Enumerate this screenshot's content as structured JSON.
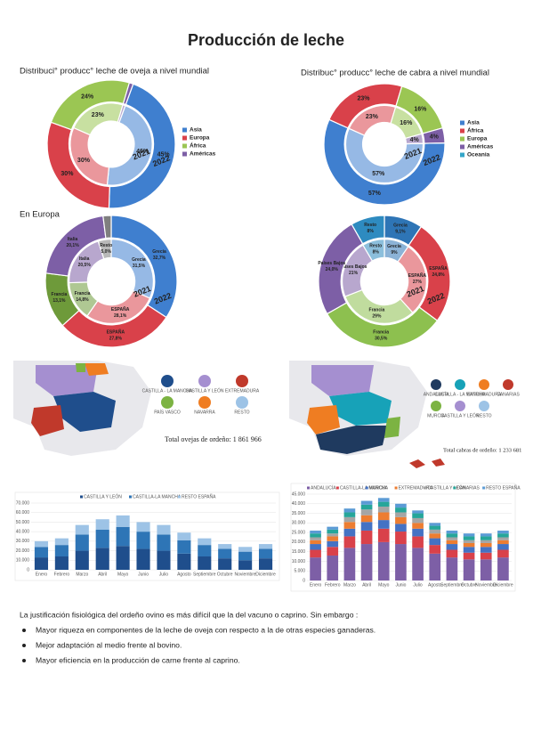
{
  "title": "Producción de leche",
  "chart_data": [
    {
      "type": "donut",
      "title": "Distribuci° producc° leche de oveja a nivel mundial",
      "categories": [
        "Asia",
        "Europa",
        "África",
        "Américas"
      ],
      "colors": [
        "#3f7fcf",
        "#d9414a",
        "#9bc653",
        "#7d5fa6"
      ],
      "series": [
        {
          "name": "2021",
          "values": [
            46,
            30,
            23,
            1
          ],
          "value_labels": [
            "46%",
            "30%",
            "23%",
            "1%"
          ]
        },
        {
          "name": "2022",
          "values": [
            45,
            30,
            24,
            1
          ],
          "value_labels": [
            "45%",
            "30%",
            "24%",
            "1%"
          ]
        }
      ]
    },
    {
      "type": "donut",
      "title": "Distribuc° producc° leche de cabra a nivel mundial",
      "categories": [
        "Asia",
        "África",
        "Europa",
        "Américas",
        "Oceania"
      ],
      "colors": [
        "#3f7fcf",
        "#d9414a",
        "#9bc653",
        "#7d5fa6",
        "#35a6c8"
      ],
      "series": [
        {
          "name": "2021",
          "values": [
            57,
            23,
            16,
            4,
            0
          ],
          "value_labels": [
            "57%",
            "23%",
            "16%",
            "4%",
            "0%"
          ]
        },
        {
          "name": "2022",
          "values": [
            57,
            23,
            16,
            4,
            0
          ],
          "value_labels": [
            "57%",
            "23%",
            "16%",
            "4%",
            "0%"
          ]
        }
      ]
    },
    {
      "type": "donut",
      "title": "En Europa",
      "categories": [
        "Grecia",
        "ESPAÑA",
        "Francia",
        "Italia",
        "Resto"
      ],
      "colors": [
        "#3f7fcf",
        "#d9414a",
        "#6e9a3a",
        "#7d5fa6",
        "#7f7f7f"
      ],
      "series": [
        {
          "name": "2021",
          "values": [
            31.5,
            28.1,
            14.8,
            20.5,
            5.0
          ],
          "value_labels": [
            "31,5%",
            "28,1%",
            "14,8%",
            "20,5%",
            "5,0%"
          ]
        },
        {
          "name": "2022",
          "values": [
            32.7,
            27.8,
            13.1,
            20.1,
            1.9
          ],
          "value_labels": [
            "32,7%",
            "27,8%",
            "13,1%",
            "20,1%",
            "1,9%"
          ]
        }
      ]
    },
    {
      "type": "donut",
      "categories": [
        "Grecia",
        "ESPAÑA",
        "Francia",
        "Países Bajos",
        "Resto"
      ],
      "colors": [
        "#2e75b6",
        "#d9414a",
        "#8dc04f",
        "#7d5fa6",
        "#2e8bc0"
      ],
      "series": [
        {
          "name": "2021",
          "values": [
            9,
            27,
            29,
            21,
            8
          ],
          "value_labels": [
            "9%",
            "27%",
            "29%",
            "21%",
            "8%"
          ]
        },
        {
          "name": "2022",
          "values": [
            9.1,
            24.8,
            30.5,
            24.0,
            8
          ],
          "value_labels": [
            "9,1%",
            "24,8%",
            "30,5%",
            "24,0%",
            "8%"
          ]
        }
      ]
    },
    {
      "type": "stacked_bar",
      "categories": [
        "Enero",
        "Febrero",
        "Marzo",
        "Abril",
        "Mayo",
        "Junio",
        "Julio",
        "Agosto",
        "Septiembre",
        "Octubre",
        "Noviembre",
        "Diciembre"
      ],
      "series": [
        {
          "name": "CASTILLA Y LEÓN",
          "color": "#1f4e8c",
          "values": [
            13000,
            14000,
            20000,
            23000,
            25000,
            22000,
            20000,
            17000,
            14000,
            12000,
            10000,
            12000
          ]
        },
        {
          "name": "CASTILLA-LA MANCHA",
          "color": "#2e75b6",
          "values": [
            11000,
            12000,
            17000,
            19000,
            20000,
            18000,
            17000,
            14000,
            12000,
            10000,
            9000,
            10000
          ]
        },
        {
          "name": "RESTO ESPAÑA",
          "color": "#9dc3e6",
          "values": [
            6000,
            7000,
            10000,
            11000,
            12000,
            10000,
            10000,
            8000,
            7000,
            5000,
            5000,
            5000
          ]
        }
      ],
      "ylim": [
        0,
        70000
      ],
      "yticks": [
        {
          "value": 0,
          "label": "0"
        },
        {
          "value": 10000,
          "label": "10.000"
        },
        {
          "value": 20000,
          "label": "20.000"
        },
        {
          "value": 30000,
          "label": "30.000"
        },
        {
          "value": 40000,
          "label": "40.000"
        },
        {
          "value": 50000,
          "label": "50.000"
        },
        {
          "value": 60000,
          "label": "60.000"
        },
        {
          "value": 70000,
          "label": "70.000"
        }
      ],
      "grid": true
    },
    {
      "type": "stacked_bar",
      "categories": [
        "Enero",
        "Febrero",
        "Marzo",
        "Abril",
        "Mayo",
        "Junio",
        "Julio",
        "Agosto",
        "Septiembre",
        "Octubre",
        "Noviembre",
        "Diciembre"
      ],
      "series": [
        {
          "name": "ANDALUCÍA",
          "color": "#7d5fa6",
          "values": [
            12000,
            13000,
            17000,
            19000,
            20000,
            19000,
            17000,
            14000,
            12000,
            11000,
            11000,
            12000
          ]
        },
        {
          "name": "CASTILLA-LA MANCHA",
          "color": "#d9414a",
          "values": [
            4000,
            4500,
            6000,
            7000,
            7000,
            6500,
            6000,
            4500,
            4000,
            3500,
            3500,
            4000
          ]
        },
        {
          "name": "MURCIA",
          "color": "#4472c4",
          "values": [
            3000,
            3000,
            4000,
            4500,
            4500,
            4000,
            4000,
            3500,
            3000,
            3000,
            3000,
            3000
          ]
        },
        {
          "name": "EXTREMADURA",
          "color": "#ed7d31",
          "values": [
            2000,
            2500,
            3500,
            3500,
            4000,
            3500,
            3000,
            2500,
            2000,
            2000,
            2000,
            2000
          ]
        },
        {
          "name": "CASTILLA Y LEÓN",
          "color": "#a5a5a5",
          "values": [
            1500,
            1500,
            2500,
            3000,
            3000,
            2500,
            2500,
            2000,
            1500,
            1500,
            1500,
            1500
          ]
        },
        {
          "name": "CANARIAS",
          "color": "#26a69a",
          "values": [
            2000,
            2000,
            2500,
            2500,
            2500,
            2500,
            2500,
            2000,
            2000,
            2000,
            2000,
            2000
          ]
        },
        {
          "name": "RESTO ESPAÑA",
          "color": "#5b9bd5",
          "values": [
            1500,
            1500,
            2000,
            2000,
            2000,
            2000,
            1500,
            1500,
            1500,
            1500,
            1500,
            1500
          ]
        }
      ],
      "ylim": [
        0,
        45000
      ],
      "yticks": [
        {
          "value": 0,
          "label": "0"
        },
        {
          "value": 5000,
          "label": "5.000"
        },
        {
          "value": 10000,
          "label": "10.000"
        },
        {
          "value": 15000,
          "label": "15.000"
        },
        {
          "value": 20000,
          "label": "20.000"
        },
        {
          "value": 25000,
          "label": "25.000"
        },
        {
          "value": 30000,
          "label": "30.000"
        },
        {
          "value": 35000,
          "label": "35.000"
        },
        {
          "value": 40000,
          "label": "40.000"
        },
        {
          "value": 45000,
          "label": "45.000"
        }
      ],
      "grid": true
    }
  ],
  "maps": [
    {
      "legend": [
        {
          "label": "CASTILLA - LA MANCHA",
          "color": "#1f4e8c"
        },
        {
          "label": "CASTILLA Y LEÓN",
          "color": "#a58fd0"
        },
        {
          "label": "EXTREMADURA",
          "color": "#c0392b"
        },
        {
          "label": "PAÍS VASCO",
          "color": "#7cb342"
        },
        {
          "label": "NAVARRA",
          "color": "#ef7d22"
        },
        {
          "label": "RESTO",
          "color": "#9dc3e6"
        }
      ],
      "total": "Total ovejas de ordeño: 1 861 966"
    },
    {
      "legend": [
        {
          "label": "ANDALUCÍA",
          "color": "#1f3a5f"
        },
        {
          "label": "CASTILLA - LA MANCHA",
          "color": "#17a2b8"
        },
        {
          "label": "EXTREMADURA",
          "color": "#ef7d22"
        },
        {
          "label": "CANARIAS",
          "color": "#c0392b"
        },
        {
          "label": "MURCIA",
          "color": "#7cb342"
        },
        {
          "label": "CASTILLA Y LEÓN",
          "color": "#a58fd0"
        },
        {
          "label": "RESTO",
          "color": "#9dc3e6"
        }
      ],
      "total": "Total cabras de ordeño: 1 233 681"
    }
  ],
  "text": {
    "intro": "La justificación fisiológica del ordeño ovino es más difícil que la del vacuno o caprino. Sin embargo :",
    "bullets": [
      "Mayor riqueza en componentes de la leche de oveja con respecto a la de otras especies ganaderas.",
      "Mejor adaptación al medio frente al bovino.",
      "Mayor eficiencia en la producción de carne frente al caprino."
    ]
  }
}
